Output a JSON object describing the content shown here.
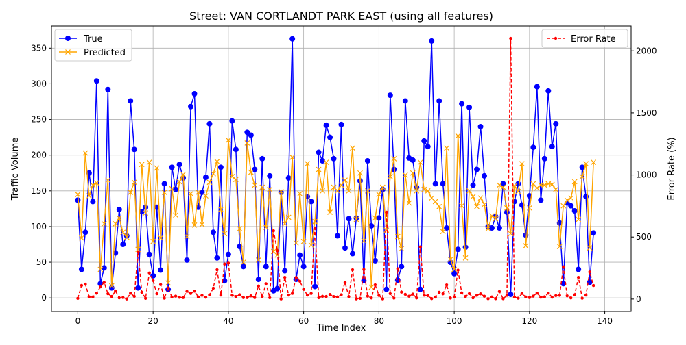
{
  "chart_data": {
    "type": "line",
    "title": "Street: VAN CORTLANDT PARK EAST (using all features)",
    "xlabel": "Time Index",
    "ylabel": "Traffic Volume",
    "y2label": "Error Rate (%)",
    "xlim": [
      -7,
      147
    ],
    "ylim": [
      -19,
      381
    ],
    "y2lim": [
      -100,
      2200
    ],
    "x_ticks": [
      0,
      20,
      40,
      60,
      80,
      100,
      120,
      140
    ],
    "y_ticks": [
      0,
      50,
      100,
      150,
      200,
      250,
      300,
      350
    ],
    "y2_ticks": [
      0,
      500,
      1000,
      1500,
      2000
    ],
    "grid": true,
    "legend_left": "upper-left",
    "legend_right": "upper-right",
    "colors": {
      "true": "#0000ff",
      "predicted": "#ffa500",
      "error": "#ff0000",
      "grid": "#b0b0b0"
    },
    "series": [
      {
        "name": "True",
        "axis": "left",
        "marker": "circle",
        "style": "solid",
        "values": [
          137,
          40,
          92,
          175,
          135,
          304,
          20,
          42,
          292,
          14,
          63,
          124,
          75,
          87,
          276,
          208,
          14,
          121,
          127,
          61,
          31,
          127,
          39,
          160,
          12,
          183,
          152,
          187,
          168,
          53,
          268,
          286,
          127,
          148,
          169,
          244,
          92,
          56,
          183,
          24,
          61,
          248,
          208,
          72,
          44,
          232,
          228,
          180,
          26,
          195,
          44,
          171,
          10,
          13,
          148,
          38,
          168,
          363,
          26,
          60,
          44,
          142,
          135,
          16,
          204,
          192,
          242,
          225,
          195,
          87,
          243,
          70,
          111,
          62,
          112,
          164,
          24,
          192,
          101,
          52,
          112,
          152,
          12,
          284,
          180,
          25,
          44,
          276,
          196,
          193,
          155,
          12,
          220,
          212,
          360,
          160,
          276,
          160,
          98,
          50,
          34,
          68,
          272,
          71,
          267,
          158,
          180,
          240,
          171,
          100,
          98,
          114,
          98,
          160,
          120,
          5,
          135,
          160,
          130,
          88,
          143,
          211,
          296,
          137,
          195,
          290,
          212,
          244,
          105,
          20,
          133,
          129,
          122,
          40,
          183,
          142,
          22,
          91
        ]
      },
      {
        "name": "Predicted",
        "axis": "left",
        "marker": "x",
        "style": "solid",
        "values": [
          145,
          84,
          203,
          143,
          158,
          161,
          40,
          104,
          165,
          17,
          104,
          112,
          92,
          85,
          148,
          162,
          68,
          187,
          119,
          190,
          79,
          182,
          84,
          148,
          21,
          153,
          116,
          163,
          173,
          86,
          146,
          102,
          148,
          103,
          143,
          162,
          174,
          191,
          124,
          90,
          221,
          170,
          166,
          97,
          50,
          217,
          176,
          158,
          53,
          155,
          99,
          152,
          65,
          60,
          149,
          104,
          113,
          197,
          77,
          146,
          79,
          188,
          74,
          107,
          180,
          150,
          190,
          120,
          155,
          150,
          158,
          165,
          150,
          210,
          110,
          175,
          80,
          150,
          15,
          112,
          145,
          155,
          95,
          170,
          195,
          86,
          69,
          172,
          133,
          175,
          150,
          190,
          152,
          150,
          140,
          135,
          128,
          93,
          210,
          54,
          40,
          227,
          129,
          56,
          150,
          142,
          128,
          140,
          131,
          97,
          115,
          111,
          158,
          155,
          126,
          90,
          157,
          149,
          188,
          73,
          126,
          160,
          154,
          158,
          158,
          160,
          159,
          152,
          72,
          129,
          137,
          140,
          163,
          110,
          170,
          188,
          70,
          190
        ]
      },
      {
        "name": "Error Rate",
        "axis": "right",
        "marker": "dot",
        "style": "dashed",
        "values": [
          6,
          110,
          120,
          18,
          17,
          47,
          98,
          134,
          43,
          21,
          65,
          10,
          13,
          1,
          47,
          22,
          380,
          55,
          6,
          210,
          150,
          43,
          117,
          7,
          89,
          16,
          24,
          14,
          12,
          62,
          45,
          64,
          17,
          30,
          15,
          34,
          88,
          236,
          32,
          282,
          290,
          31,
          20,
          35,
          12,
          12,
          26,
          12,
          105,
          21,
          124,
          11,
          550,
          390,
          1,
          175,
          32,
          46,
          174,
          144,
          78,
          32,
          45,
          570,
          11,
          22,
          21,
          37,
          20,
          17,
          35,
          135,
          20,
          236,
          2,
          6,
          238,
          24,
          9,
          115,
          29,
          2,
          700,
          44,
          8,
          244,
          56,
          38,
          23,
          40,
          9,
          420,
          31,
          28,
          4,
          16,
          55,
          42,
          114,
          8,
          17,
          233,
          50,
          21,
          44,
          10,
          30,
          42,
          23,
          3,
          17,
          3,
          61,
          3,
          30,
          2100,
          17,
          7,
          45,
          17,
          12,
          24,
          48,
          15,
          18,
          48,
          15,
          28,
          30,
          260,
          26,
          9,
          34,
          175,
          7,
          32,
          218,
          109
        ]
      }
    ]
  }
}
